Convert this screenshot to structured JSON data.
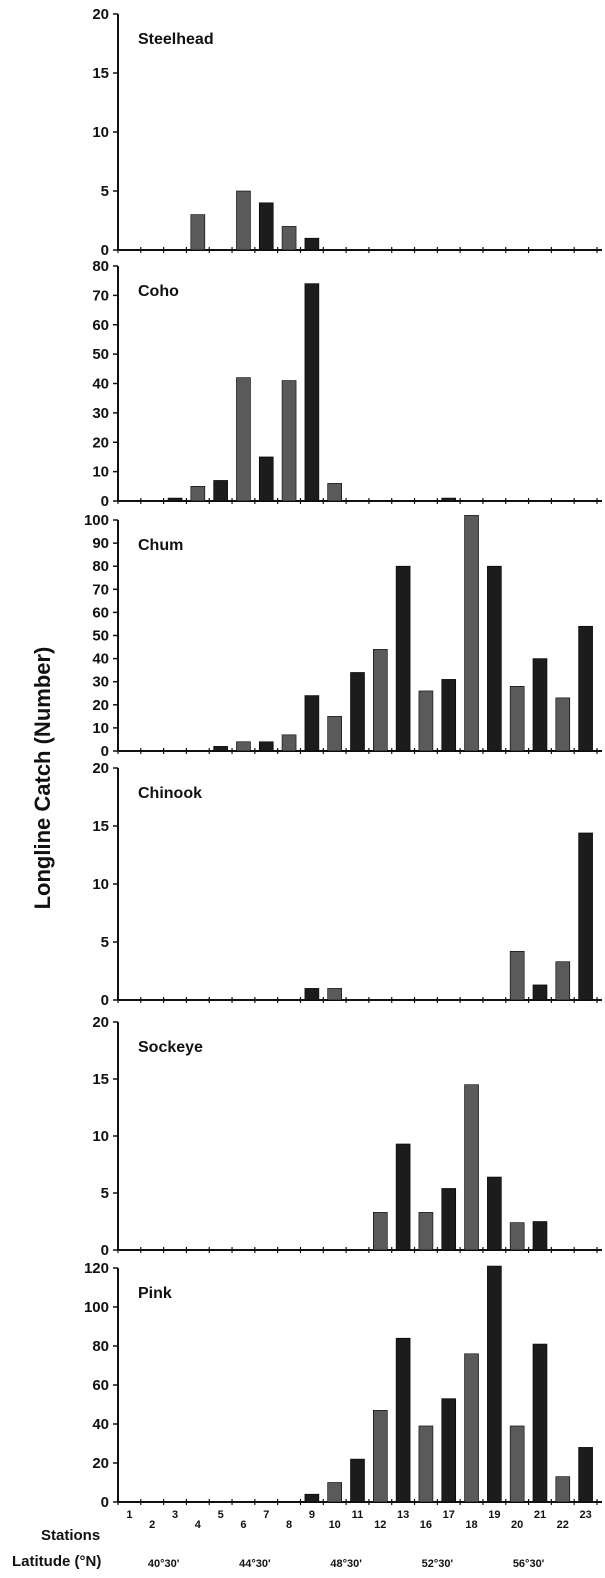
{
  "figure": {
    "ylabel": "Longline Catch (Number)",
    "xrow_label": "Stations",
    "lat_row_label": "Latitude (°N)",
    "latitude_labels": [
      "40°30'",
      "44°30'",
      "48°30'",
      "52°30'",
      "56°30'"
    ]
  },
  "colors": {
    "bar_dark": "#1c1c1c",
    "bar_mid": "#5a5a5a",
    "axis": "#111111"
  },
  "chart_data": [
    {
      "type": "bar",
      "title": "Steelhead",
      "categories": [
        "1",
        "2",
        "3",
        "4",
        "5",
        "6",
        "7",
        "8",
        "9",
        "10",
        "11",
        "12",
        "13",
        "16",
        "17",
        "18",
        "19",
        "20",
        "21",
        "22",
        "23"
      ],
      "values": [
        0,
        0,
        0,
        3,
        0,
        5,
        4,
        2,
        1,
        0,
        0,
        0,
        0,
        0,
        0,
        0,
        0,
        0,
        0,
        0,
        0
      ],
      "ylim": [
        0,
        20
      ],
      "yticks": [
        0,
        5,
        10,
        15,
        20
      ]
    },
    {
      "type": "bar",
      "title": "Coho",
      "categories": [
        "1",
        "2",
        "3",
        "4",
        "5",
        "6",
        "7",
        "8",
        "9",
        "10",
        "11",
        "12",
        "13",
        "16",
        "17",
        "18",
        "19",
        "20",
        "21",
        "22",
        "23"
      ],
      "values": [
        0,
        0,
        1,
        5,
        7,
        42,
        15,
        41,
        74,
        6,
        0,
        0,
        0,
        0,
        1,
        0,
        0,
        0,
        0,
        0,
        0
      ],
      "ylim": [
        0,
        80
      ],
      "yticks": [
        0,
        10,
        20,
        30,
        40,
        50,
        60,
        70,
        80
      ]
    },
    {
      "type": "bar",
      "title": "Chum",
      "categories": [
        "1",
        "2",
        "3",
        "4",
        "5",
        "6",
        "7",
        "8",
        "9",
        "10",
        "11",
        "12",
        "13",
        "16",
        "17",
        "18",
        "19",
        "20",
        "21",
        "22",
        "23"
      ],
      "values": [
        0,
        0,
        0,
        0,
        2,
        4,
        4,
        7,
        24,
        15,
        34,
        44,
        80,
        26,
        31,
        102,
        80,
        28,
        40,
        23,
        54
      ],
      "ylim": [
        0,
        100
      ],
      "yticks": [
        0,
        10,
        20,
        30,
        40,
        50,
        60,
        70,
        80,
        90,
        100
      ]
    },
    {
      "type": "bar",
      "title": "Chinook",
      "categories": [
        "1",
        "2",
        "3",
        "4",
        "5",
        "6",
        "7",
        "8",
        "9",
        "10",
        "11",
        "12",
        "13",
        "16",
        "17",
        "18",
        "19",
        "20",
        "21",
        "22",
        "23"
      ],
      "values": [
        0,
        0,
        0,
        0,
        0,
        0,
        0,
        0,
        1,
        1,
        0,
        0,
        0,
        0,
        0,
        0,
        0,
        4.2,
        1.3,
        3.3,
        14.4
      ],
      "ylim": [
        0,
        20
      ],
      "yticks": [
        0,
        5,
        10,
        15,
        20
      ]
    },
    {
      "type": "bar",
      "title": "Sockeye",
      "categories": [
        "1",
        "2",
        "3",
        "4",
        "5",
        "6",
        "7",
        "8",
        "9",
        "10",
        "11",
        "12",
        "13",
        "16",
        "17",
        "18",
        "19",
        "20",
        "21",
        "22",
        "23"
      ],
      "values": [
        0,
        0,
        0,
        0,
        0,
        0,
        0,
        0,
        0,
        0,
        0,
        3.3,
        9.3,
        3.3,
        5.4,
        14.5,
        6.4,
        2.4,
        2.5,
        0,
        0
      ],
      "ylim": [
        0,
        20
      ],
      "yticks": [
        0,
        5,
        10,
        15,
        20
      ]
    },
    {
      "type": "bar",
      "title": "Pink",
      "categories": [
        "1",
        "2",
        "3",
        "4",
        "5",
        "6",
        "7",
        "8",
        "9",
        "10",
        "11",
        "12",
        "13",
        "16",
        "17",
        "18",
        "19",
        "20",
        "21",
        "22",
        "23"
      ],
      "values": [
        0,
        0,
        0,
        0,
        0,
        0,
        0,
        0,
        4,
        10,
        22,
        47,
        84,
        39,
        53,
        76,
        121,
        39,
        81,
        13,
        28
      ],
      "ylim": [
        0,
        120
      ],
      "yticks": [
        0,
        20,
        40,
        60,
        80,
        100,
        120
      ]
    }
  ]
}
